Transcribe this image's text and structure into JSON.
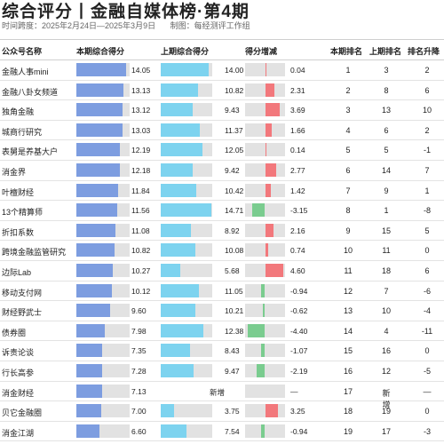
{
  "title": "综合评分丨金融自媒体榜·第4期",
  "meta": {
    "period": "时间跨度：2025年2月24日—2025年3月9日",
    "maker": "制图：每经测评工作组"
  },
  "headers": {
    "name": "公众号名称",
    "cur": "本期综合得分",
    "prev": "上期综合得分",
    "diff": "得分增减",
    "rank_cur": "本期排名",
    "rank_prev": "上期排名",
    "rank_change": "排名升降"
  },
  "colors": {
    "current_bar": "#7d9de0",
    "previous_bar": "#7dd3ef",
    "increase": "#f2787c",
    "decrease": "#7acc8f",
    "bar_track": "#e2e2e2"
  },
  "new_label": "新增",
  "rows": [
    {
      "name": "金融人事mini",
      "cur": "14.05",
      "prev": "14.00",
      "diff": "0.04",
      "r1": "1",
      "r2": "3",
      "r3": "2"
    },
    {
      "name": "金融八卦女频道",
      "cur": "13.13",
      "prev": "10.82",
      "diff": "2.31",
      "r1": "2",
      "r2": "8",
      "r3": "6"
    },
    {
      "name": "独角金融",
      "cur": "13.12",
      "prev": "9.43",
      "diff": "3.69",
      "r1": "3",
      "r2": "13",
      "r3": "10"
    },
    {
      "name": "城商行研究",
      "cur": "13.03",
      "prev": "11.37",
      "diff": "1.66",
      "r1": "4",
      "r2": "6",
      "r3": "2"
    },
    {
      "name": "表舅是养基大户",
      "cur": "12.19",
      "prev": "12.05",
      "diff": "0.14",
      "r1": "5",
      "r2": "5",
      "r3": "-1"
    },
    {
      "name": "消金界",
      "cur": "12.18",
      "prev": "9.42",
      "diff": "2.77",
      "r1": "6",
      "r2": "14",
      "r3": "7"
    },
    {
      "name": "叶檀财经",
      "cur": "11.84",
      "prev": "10.42",
      "diff": "1.42",
      "r1": "7",
      "r2": "9",
      "r3": "1"
    },
    {
      "name": "13个精算师",
      "cur": "11.56",
      "prev": "14.71",
      "diff": "-3.15",
      "r1": "8",
      "r2": "1",
      "r3": "-8"
    },
    {
      "name": "折扣系数",
      "cur": "11.08",
      "prev": "8.92",
      "diff": "2.16",
      "r1": "9",
      "r2": "15",
      "r3": "5"
    },
    {
      "name": "跨境金融监管研究",
      "cur": "10.82",
      "prev": "10.08",
      "diff": "0.74",
      "r1": "10",
      "r2": "11",
      "r3": "0"
    },
    {
      "name": "边际Lab",
      "cur": "10.27",
      "prev": "5.68",
      "diff": "4.60",
      "r1": "11",
      "r2": "18",
      "r3": "6"
    },
    {
      "name": "移动支付网",
      "cur": "10.12",
      "prev": "11.05",
      "diff": "-0.94",
      "r1": "12",
      "r2": "7",
      "r3": "-6"
    },
    {
      "name": "财经野武士",
      "cur": "9.60",
      "prev": "10.21",
      "diff": "-0.62",
      "r1": "13",
      "r2": "10",
      "r3": "-4"
    },
    {
      "name": "债券圈",
      "cur": "7.98",
      "prev": "12.38",
      "diff": "-4.40",
      "r1": "14",
      "r2": "4",
      "r3": "-11"
    },
    {
      "name": "诉责论谈",
      "cur": "7.35",
      "prev": "8.43",
      "diff": "-1.07",
      "r1": "15",
      "r2": "16",
      "r3": "0"
    },
    {
      "name": "行长高参",
      "cur": "7.28",
      "prev": "9.47",
      "diff": "-2.19",
      "r1": "16",
      "r2": "12",
      "r3": "-5"
    },
    {
      "name": "消金财经",
      "cur": "7.13",
      "prev": "新增",
      "diff": "—",
      "r1": "17",
      "r2": "新增",
      "r3": "—"
    },
    {
      "name": "贝它金融圈",
      "cur": "7.00",
      "prev": "3.75",
      "diff": "3.25",
      "r1": "18",
      "r2": "19",
      "r3": "0"
    },
    {
      "name": "消金江湖",
      "cur": "6.60",
      "prev": "7.54",
      "diff": "-0.94",
      "r1": "19",
      "r2": "17",
      "r3": "-3"
    }
  ]
}
